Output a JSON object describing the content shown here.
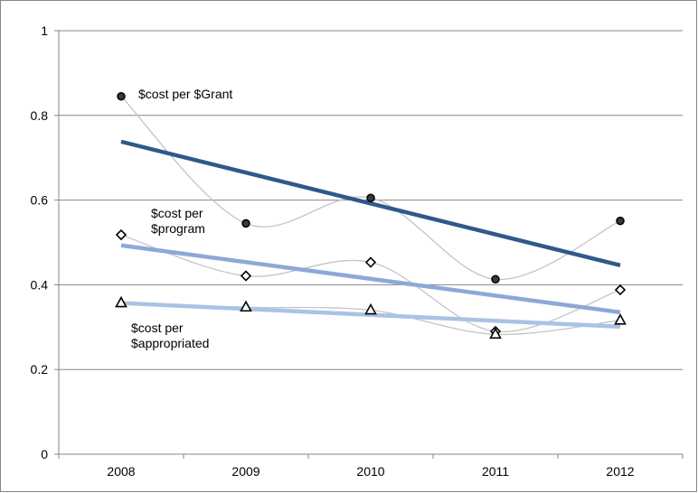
{
  "chart_data": {
    "type": "line",
    "title": "",
    "xlabel": "",
    "ylabel": "",
    "categories": [
      "2008",
      "2009",
      "2010",
      "2011",
      "2012"
    ],
    "ylim": [
      0,
      1
    ],
    "yticks": [
      "0",
      "0.2",
      "0.4",
      "0.6",
      "0.8",
      "1"
    ],
    "grid": "horizontal",
    "legend": "none",
    "series": [
      {
        "name": "$cost per $Grant",
        "label_lines": [
          "$cost per $Grant"
        ],
        "marker": "circle",
        "values": [
          0.845,
          0.545,
          0.605,
          0.413,
          0.551
        ],
        "trend": [
          0.738,
          0.665,
          0.592,
          0.519,
          0.446
        ],
        "trend_color": "#2E5A88"
      },
      {
        "name": "$cost per $program",
        "label_lines": [
          "$cost per",
          "$program"
        ],
        "marker": "diamond",
        "values": [
          0.518,
          0.421,
          0.453,
          0.29,
          0.388
        ],
        "trend": [
          0.493,
          0.454,
          0.414,
          0.375,
          0.335
        ],
        "trend_color": "#8BA9D8"
      },
      {
        "name": "$cost per $appropriated",
        "label_lines": [
          "$cost per",
          "$appropriated"
        ],
        "marker": "triangle",
        "values": [
          0.357,
          0.347,
          0.34,
          0.283,
          0.316
        ],
        "trend": [
          0.357,
          0.343,
          0.329,
          0.315,
          0.301
        ],
        "trend_color": "#A9C3E5"
      }
    ]
  }
}
